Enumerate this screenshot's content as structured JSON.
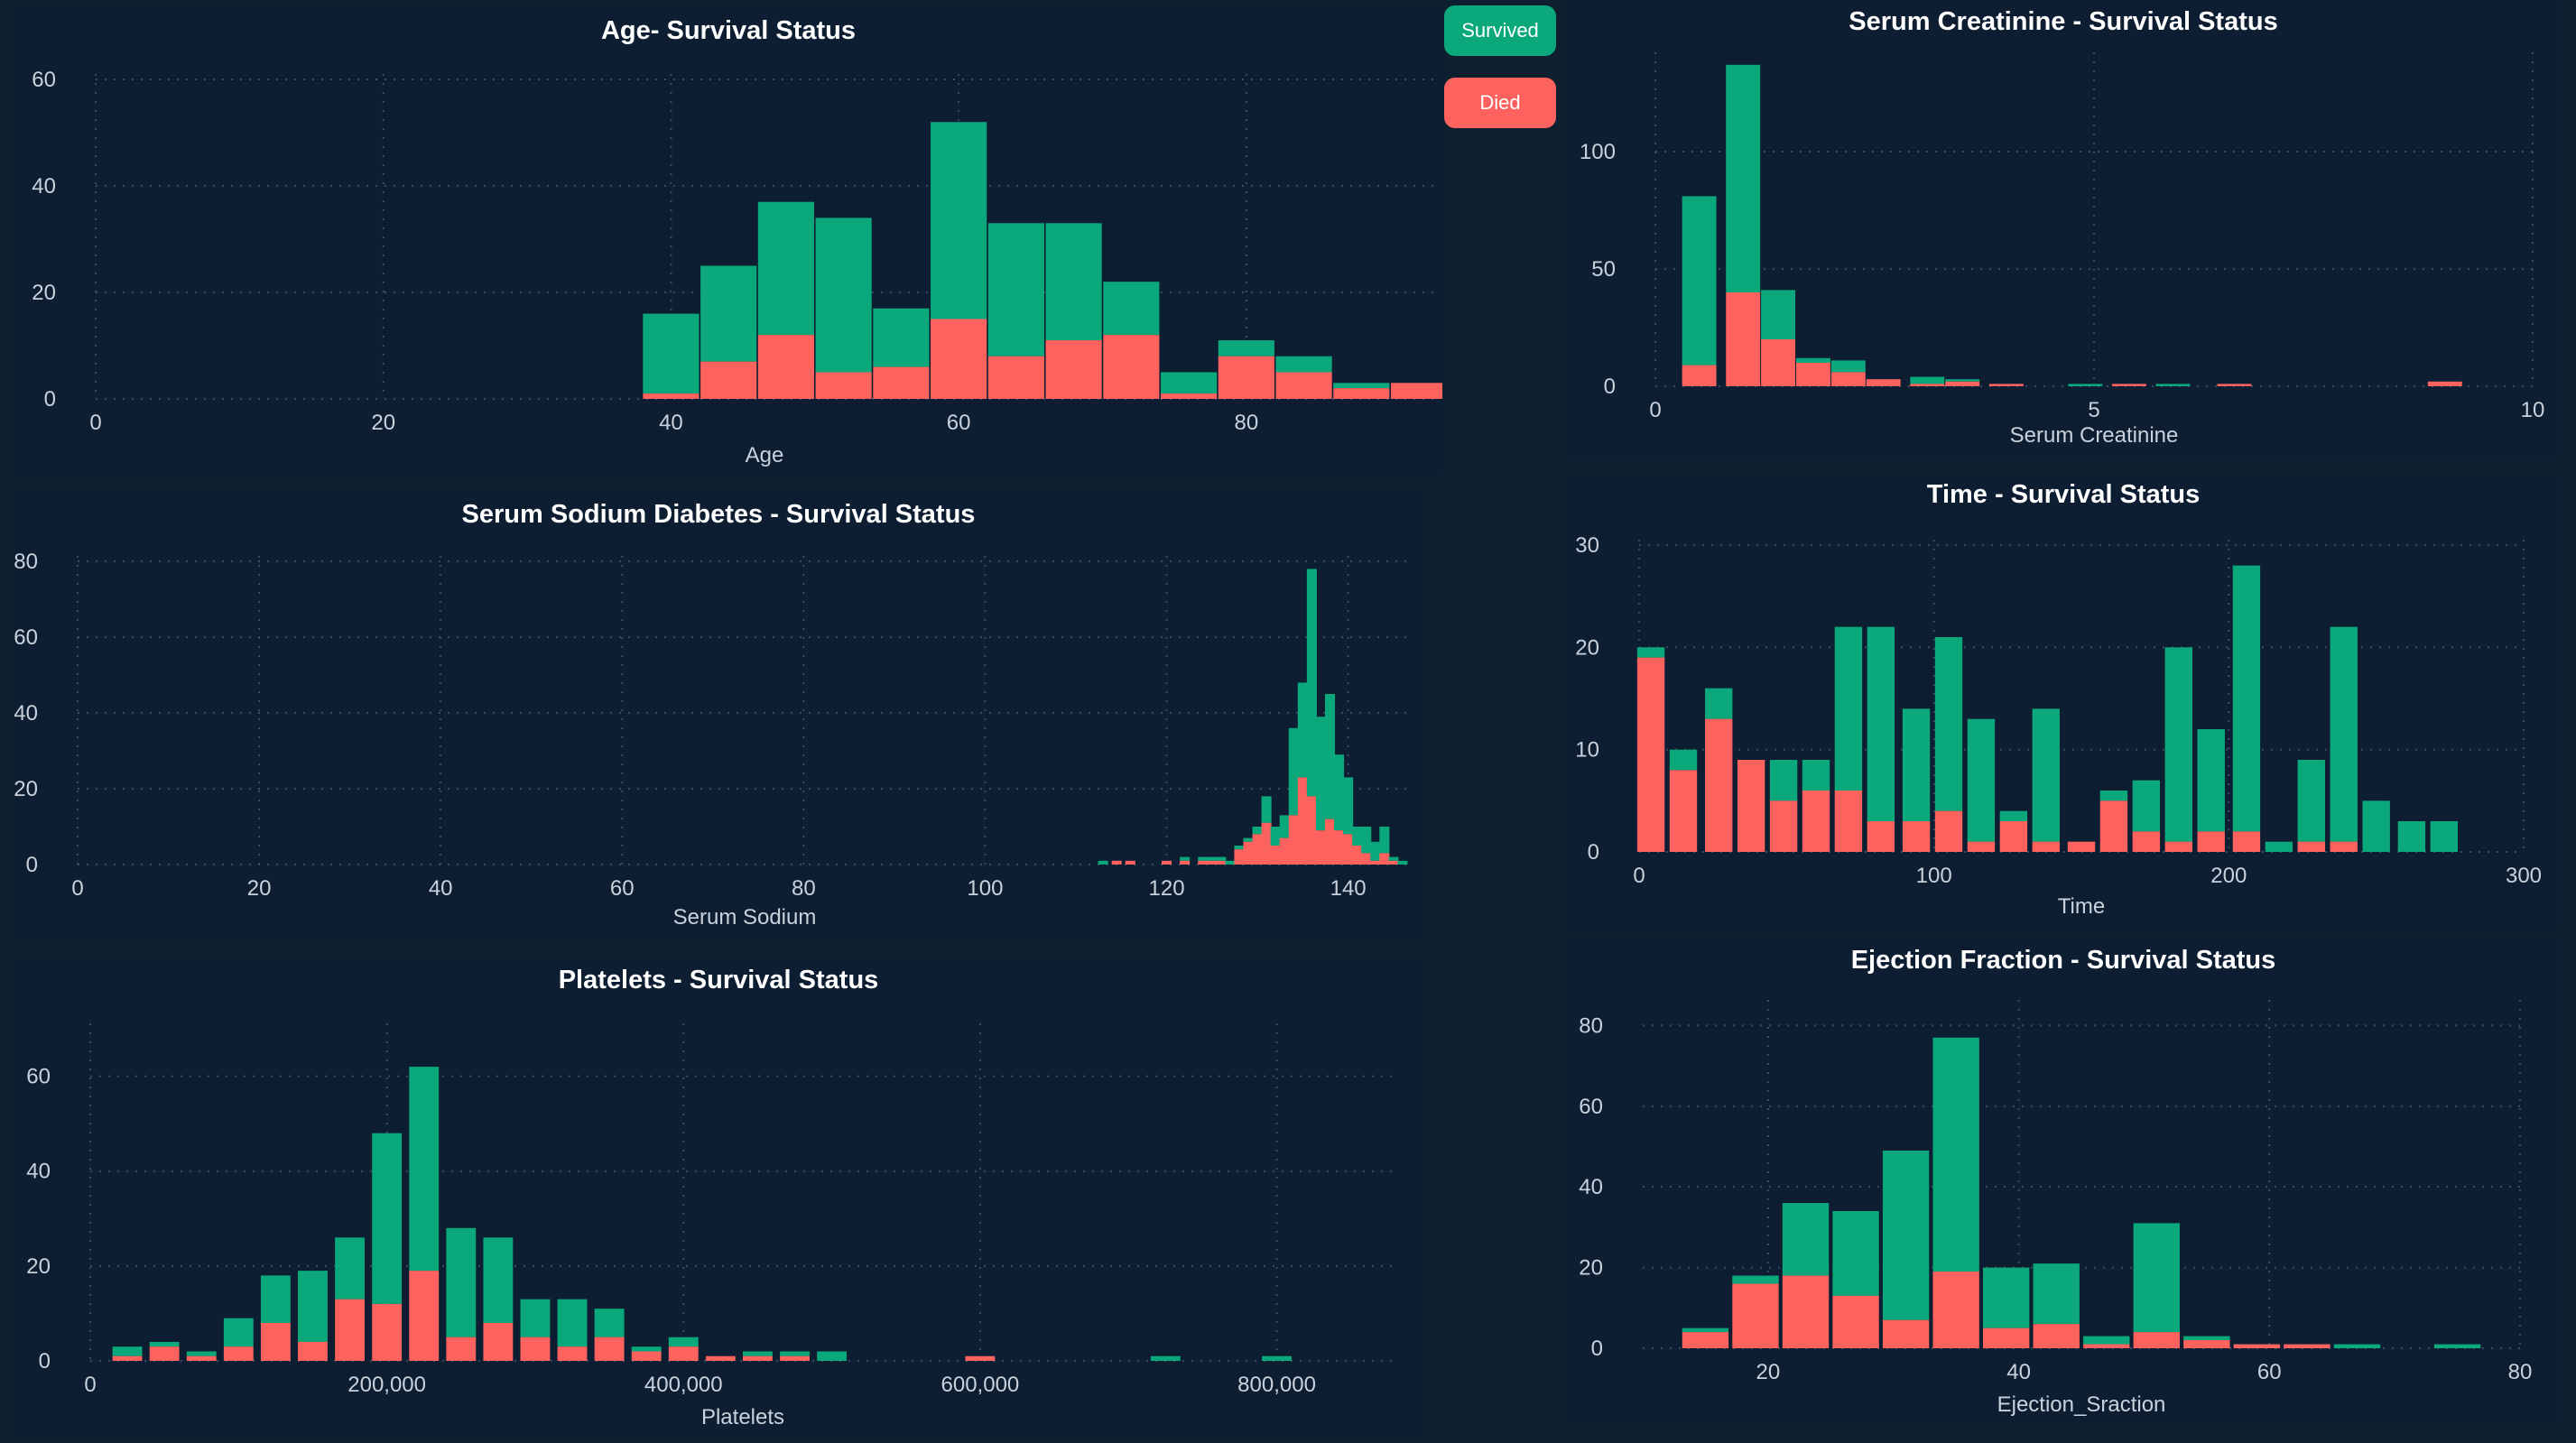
{
  "legend": {
    "survived_label": "Survived",
    "died_label": "Died",
    "survived_color": "#0aa87a",
    "died_color": "#fd625e"
  },
  "chart_data": [
    {
      "id": "age",
      "type": "bar",
      "stacked": true,
      "title": "Age- Survival Status",
      "xlabel": "Age",
      "ylabel": "",
      "xlim": [
        0,
        93
      ],
      "ylim": [
        0,
        60
      ],
      "x_ticks": [
        0,
        20,
        40,
        60,
        80
      ],
      "y_ticks": [
        0,
        20,
        40,
        60
      ],
      "x_tick_labels": [
        "0",
        "20",
        "40",
        "60",
        "80"
      ],
      "y_tick_labels": [
        "0",
        "20",
        "40",
        "60"
      ],
      "bin_width": 3.9,
      "x": [
        40,
        44,
        48,
        52,
        56,
        60,
        64,
        68,
        72,
        76,
        80,
        84,
        88,
        92
      ],
      "series": [
        {
          "name": "Died",
          "values": [
            1,
            7,
            12,
            5,
            6,
            15,
            8,
            11,
            12,
            1,
            8,
            5,
            2,
            3
          ]
        },
        {
          "name": "Survived",
          "values": [
            15,
            18,
            25,
            29,
            11,
            37,
            25,
            22,
            10,
            4,
            3,
            3,
            1,
            0
          ]
        }
      ]
    },
    {
      "id": "serum_sodium",
      "type": "bar",
      "stacked": true,
      "title": "Serum Sodium Diabetes - Survival Status",
      "xlabel": "Serum Sodium",
      "ylabel": "",
      "xlim": [
        0,
        147
      ],
      "ylim": [
        0,
        80
      ],
      "x_ticks": [
        0,
        20,
        40,
        60,
        80,
        100,
        120,
        140
      ],
      "y_ticks": [
        0,
        20,
        40,
        60,
        80
      ],
      "x_tick_labels": [
        "0",
        "20",
        "40",
        "60",
        "80",
        "100",
        "120",
        "140"
      ],
      "y_tick_labels": [
        "0",
        "20",
        "40",
        "60",
        "80"
      ],
      "bin_width": 1.1,
      "x": [
        113,
        114.5,
        116,
        120,
        122,
        124,
        125,
        126,
        127,
        128,
        129,
        130,
        131,
        132,
        133,
        134,
        135,
        136,
        137,
        138,
        139,
        140,
        141,
        142,
        143,
        144,
        145,
        146
      ],
      "series": [
        {
          "name": "Died",
          "values": [
            0,
            1,
            1,
            1,
            1,
            1,
            1,
            1,
            0,
            4,
            6,
            8,
            11,
            5,
            7,
            13,
            23,
            18,
            9,
            12,
            9,
            8,
            5,
            3,
            1,
            3,
            1,
            0
          ]
        },
        {
          "name": "Survived",
          "values": [
            1,
            0,
            0,
            0,
            1,
            1,
            1,
            1,
            1,
            1,
            1,
            2,
            7,
            5,
            6,
            23,
            25,
            60,
            30,
            33,
            20,
            15,
            5,
            7,
            5,
            7,
            1,
            1
          ]
        }
      ]
    },
    {
      "id": "platelets",
      "type": "bar",
      "stacked": true,
      "title": "Platelets - Survival Status",
      "xlabel": "Platelets",
      "ylabel": "",
      "xlim": [
        0,
        880000
      ],
      "ylim": [
        0,
        70
      ],
      "x_ticks": [
        0,
        200000,
        400000,
        600000,
        800000
      ],
      "y_ticks": [
        0,
        20,
        40,
        60
      ],
      "x_tick_labels": [
        "0",
        "200,000",
        "400,000",
        "600,000",
        "800,000"
      ],
      "y_tick_labels": [
        "0",
        "20",
        "40",
        "60"
      ],
      "bin_width": 20000,
      "x": [
        25000,
        50000,
        75000,
        100000,
        125000,
        150000,
        175000,
        200000,
        225000,
        250000,
        275000,
        300000,
        325000,
        350000,
        375000,
        400000,
        425000,
        450000,
        475000,
        500000,
        525000,
        600000,
        725000,
        800000
      ],
      "series": [
        {
          "name": "Died",
          "values": [
            1,
            3,
            1,
            3,
            8,
            4,
            13,
            12,
            19,
            5,
            8,
            5,
            3,
            5,
            2,
            3,
            1,
            1,
            1,
            0,
            0,
            1,
            0,
            0
          ]
        },
        {
          "name": "Survived",
          "values": [
            2,
            1,
            1,
            6,
            10,
            15,
            13,
            36,
            43,
            23,
            18,
            8,
            10,
            6,
            1,
            2,
            0,
            1,
            1,
            2,
            0,
            0,
            1,
            1
          ]
        }
      ]
    },
    {
      "id": "serum_creatinine",
      "type": "bar",
      "stacked": true,
      "title": "Serum Creatinine - Survival Status",
      "xlabel": "Serum Creatinine",
      "ylabel": "",
      "xlim": [
        0,
        10
      ],
      "ylim": [
        0,
        140
      ],
      "x_ticks": [
        0,
        5,
        10
      ],
      "y_ticks": [
        0,
        50,
        100
      ],
      "x_tick_labels": [
        "0",
        "5",
        "10"
      ],
      "y_tick_labels": [
        "0",
        "50",
        "100"
      ],
      "bin_width": 0.39,
      "x": [
        0.5,
        1.0,
        1.4,
        1.8,
        2.2,
        2.6,
        3.1,
        3.5,
        4.0,
        4.9,
        5.4,
        5.9,
        6.6,
        9.0
      ],
      "series": [
        {
          "name": "Died",
          "values": [
            9,
            40,
            20,
            10,
            6,
            3,
            1,
            2,
            1,
            0,
            1,
            0,
            1,
            2
          ]
        },
        {
          "name": "Survived",
          "values": [
            72,
            97,
            21,
            2,
            5,
            0,
            3,
            1,
            0,
            1,
            0,
            1,
            0,
            0
          ]
        }
      ]
    },
    {
      "id": "time",
      "type": "bar",
      "stacked": true,
      "title": "Time - Survival Status",
      "xlabel": "Time",
      "ylabel": "",
      "xlim": [
        0,
        300
      ],
      "ylim": [
        0,
        30
      ],
      "x_ticks": [
        0,
        100,
        200,
        300
      ],
      "y_ticks": [
        0,
        10,
        20,
        30
      ],
      "x_tick_labels": [
        "0",
        "100",
        "200",
        "300"
      ],
      "y_tick_labels": [
        "0",
        "10",
        "20",
        "30"
      ],
      "bin_width": 9.3,
      "x": [
        4,
        15,
        27,
        38,
        49,
        60,
        71,
        82,
        94,
        105,
        116,
        127,
        138,
        150,
        161,
        172,
        183,
        194,
        206,
        217,
        228,
        239,
        250,
        262,
        273
      ],
      "series": [
        {
          "name": "Died",
          "values": [
            19,
            8,
            13,
            9,
            5,
            6,
            6,
            3,
            3,
            4,
            1,
            3,
            1,
            1,
            5,
            2,
            1,
            2,
            2,
            0,
            1,
            1,
            0,
            0,
            0
          ]
        },
        {
          "name": "Survived",
          "values": [
            1,
            2,
            3,
            0,
            4,
            3,
            16,
            19,
            11,
            17,
            12,
            1,
            13,
            0,
            1,
            5,
            19,
            10,
            26,
            1,
            8,
            21,
            5,
            3,
            3
          ]
        }
      ]
    },
    {
      "id": "ejection_fraction",
      "type": "bar",
      "stacked": true,
      "title": "Ejection Fraction - Survival Status",
      "xlabel": "Ejection_Sraction",
      "ylabel": "",
      "xlim": [
        10,
        80
      ],
      "ylim": [
        0,
        85
      ],
      "x_ticks": [
        20,
        40,
        60,
        80
      ],
      "y_ticks": [
        0,
        20,
        40,
        60,
        80
      ],
      "x_tick_labels": [
        "20",
        "40",
        "60",
        "80"
      ],
      "y_tick_labels": [
        "0",
        "20",
        "40",
        "60",
        "80"
      ],
      "bin_width": 3.7,
      "x": [
        15,
        19,
        23,
        27,
        31,
        35,
        39,
        43,
        47,
        51,
        55,
        59,
        63,
        67,
        75
      ],
      "series": [
        {
          "name": "Died",
          "values": [
            4,
            16,
            18,
            13,
            7,
            19,
            5,
            6,
            1,
            4,
            2,
            1,
            1,
            0,
            0
          ]
        },
        {
          "name": "Survived",
          "values": [
            1,
            2,
            18,
            21,
            42,
            58,
            15,
            15,
            2,
            27,
            1,
            0,
            0,
            1,
            1
          ]
        }
      ]
    }
  ]
}
